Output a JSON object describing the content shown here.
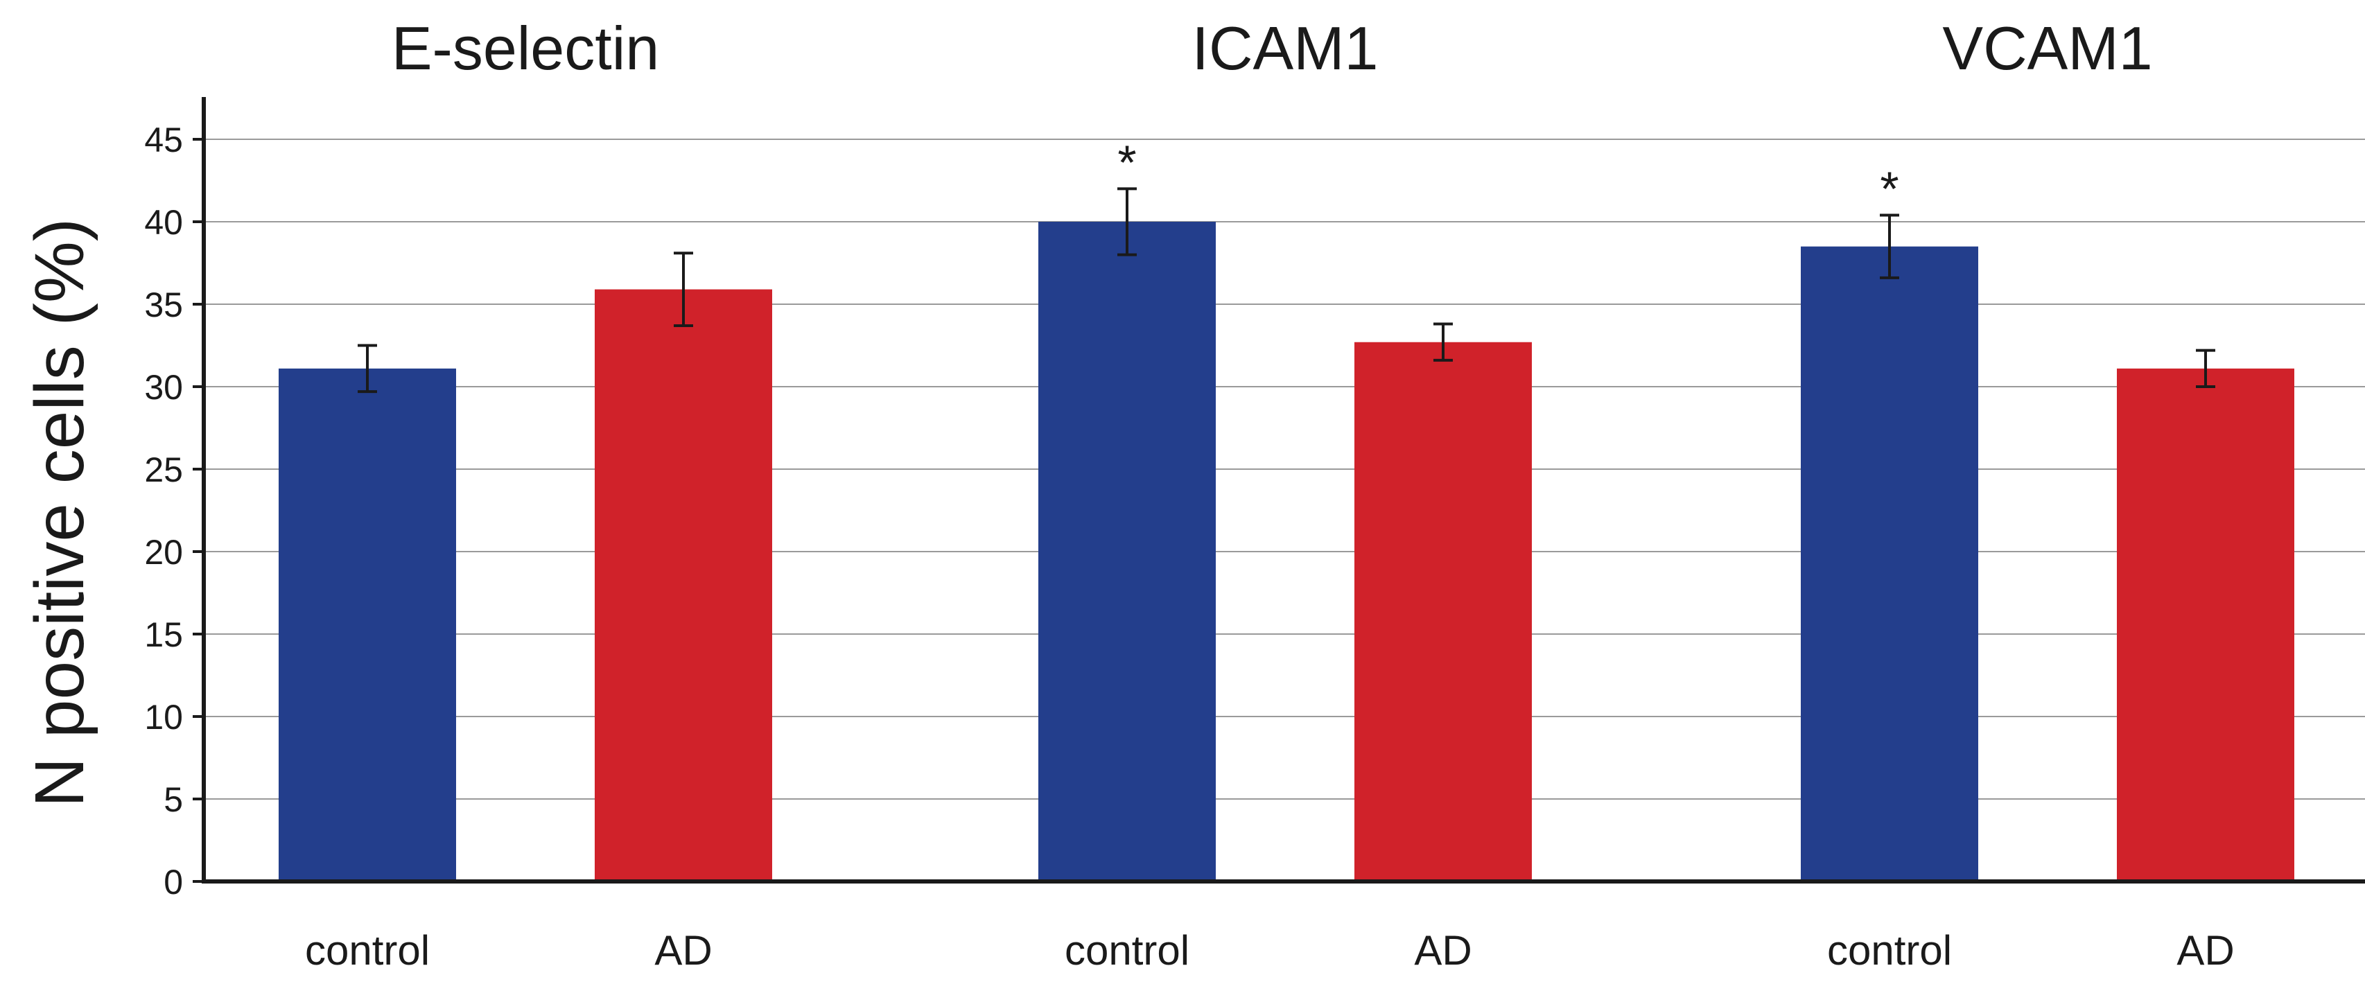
{
  "chart_data": {
    "type": "bar",
    "ylabel": "N positive cells (%)",
    "xlabel": "",
    "ylim": [
      0,
      47
    ],
    "yticks": [
      0,
      5,
      10,
      15,
      20,
      25,
      30,
      35,
      40,
      45
    ],
    "grid": true,
    "groups": [
      {
        "title": "E-selectin",
        "bars": [
          {
            "category": "control",
            "value": 31.1,
            "error": 1.4,
            "significant": false,
            "color": "#233E8C"
          },
          {
            "category": "AD",
            "value": 35.9,
            "error": 2.2,
            "significant": false,
            "color": "#D0222A"
          }
        ]
      },
      {
        "title": "ICAM1",
        "bars": [
          {
            "category": "control",
            "value": 40.0,
            "error": 2.0,
            "significant": true,
            "color": "#233E8C"
          },
          {
            "category": "AD",
            "value": 32.7,
            "error": 1.1,
            "significant": false,
            "color": "#D0222A"
          }
        ]
      },
      {
        "title": "VCAM1",
        "bars": [
          {
            "category": "control",
            "value": 38.5,
            "error": 1.9,
            "significant": true,
            "color": "#233E8C"
          },
          {
            "category": "AD",
            "value": 31.1,
            "error": 1.1,
            "significant": false,
            "color": "#D0222A"
          }
        ]
      }
    ],
    "significance_marker": "*"
  }
}
